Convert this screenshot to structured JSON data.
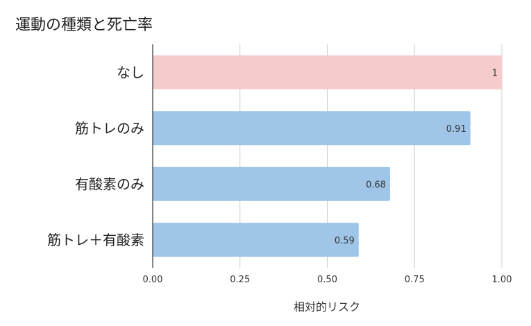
{
  "title": "運動の種類と死亡率",
  "chart_data": {
    "type": "bar",
    "orientation": "horizontal",
    "title": "運動の種類と死亡率",
    "xlabel": "相対的リスク",
    "ylabel": "",
    "xlim": [
      0,
      1
    ],
    "xticks": [
      "0.00",
      "0.25",
      "0.50",
      "0.75",
      "1.00"
    ],
    "grid": true,
    "categories": [
      "なし",
      "筋トレのみ",
      "有酸素のみ",
      "筋トレ＋有酸素"
    ],
    "values": [
      1,
      0.91,
      0.68,
      0.59
    ],
    "data_labels": [
      "1",
      "0.91",
      "0.68",
      "0.59"
    ],
    "colors": [
      "#f4cccc",
      "#9fc5e8",
      "#9fc5e8",
      "#9fc5e8"
    ]
  }
}
